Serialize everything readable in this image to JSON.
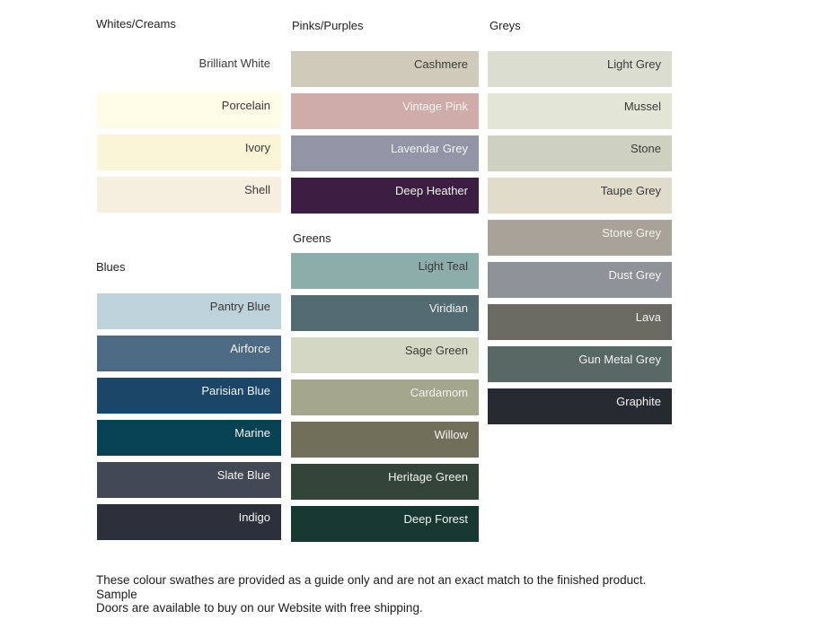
{
  "sections": [
    {
      "title": "Whites/Creams",
      "swatches": [
        {
          "name": "Brilliant White",
          "color": "#FFFFFF",
          "text": "dark"
        },
        {
          "name": "Porcelain",
          "color": "#FEFBE7",
          "text": "dark"
        },
        {
          "name": "Ivory",
          "color": "#FBF5D7",
          "text": "dark"
        },
        {
          "name": "Shell",
          "color": "#F6EEDF",
          "text": "dark"
        }
      ]
    },
    {
      "title": "Blues",
      "swatches": [
        {
          "name": "Pantry Blue",
          "color": "#BDD2D9",
          "text": "dark"
        },
        {
          "name": "Airforce",
          "color": "#4C6A84",
          "text": "light"
        },
        {
          "name": "Parisian Blue",
          "color": "#1C4667",
          "text": "light"
        },
        {
          "name": "Marine",
          "color": "#064254",
          "text": "light"
        },
        {
          "name": "Slate Blue",
          "color": "#434954",
          "text": "light"
        },
        {
          "name": "Indigo",
          "color": "#2B303B",
          "text": "light"
        }
      ]
    },
    {
      "title": "Pinks/Purples",
      "swatches": [
        {
          "name": "Cashmere",
          "color": "#CFCABA",
          "text": "dark"
        },
        {
          "name": "Vintage Pink",
          "color": "#D0ACA8",
          "text": "light"
        },
        {
          "name": "Lavendar Grey",
          "color": "#9195A6",
          "text": "light"
        },
        {
          "name": "Deep Heather",
          "color": "#3B1E41",
          "text": "light"
        }
      ]
    },
    {
      "title": "Greens",
      "swatches": [
        {
          "name": "Light Teal",
          "color": "#8CADAA",
          "text": "dark"
        },
        {
          "name": "Viridian",
          "color": "#516B70",
          "text": "light"
        },
        {
          "name": "Sage Green",
          "color": "#D3D7C3",
          "text": "dark"
        },
        {
          "name": "Cardamom",
          "color": "#A4A78C",
          "text": "light"
        },
        {
          "name": "Willow",
          "color": "#716E5A",
          "text": "light"
        },
        {
          "name": "Heritage Green",
          "color": "#334439",
          "text": "light"
        },
        {
          "name": "Deep Forest",
          "color": "#173830",
          "text": "light"
        }
      ]
    },
    {
      "title": "Greys",
      "swatches": [
        {
          "name": "Light Grey",
          "color": "#DCDDD1",
          "text": "dark"
        },
        {
          "name": "Mussel",
          "color": "#E3E5D5",
          "text": "dark"
        },
        {
          "name": "Stone",
          "color": "#CFD1C0",
          "text": "dark"
        },
        {
          "name": "Taupe Grey",
          "color": "#E0DBCB",
          "text": "dark"
        },
        {
          "name": "Stone Grey",
          "color": "#A8A298",
          "text": "light"
        },
        {
          "name": "Dust Grey",
          "color": "#909299",
          "text": "light"
        },
        {
          "name": "Lava",
          "color": "#6B6A62",
          "text": "light"
        },
        {
          "name": "Gun Metal Grey",
          "color": "#586864",
          "text": "light"
        },
        {
          "name": "Graphite",
          "color": "#262B31",
          "text": "light"
        }
      ]
    }
  ],
  "label_colors": {
    "dark": "#3a3a3a",
    "light": "#f4f4f2"
  },
  "footer": {
    "line1": "These colour swathes are provided as a guide only and are not an exact match to the finished product.  Sample",
    "line2": "Doors are available to buy on our Website with free shipping."
  }
}
